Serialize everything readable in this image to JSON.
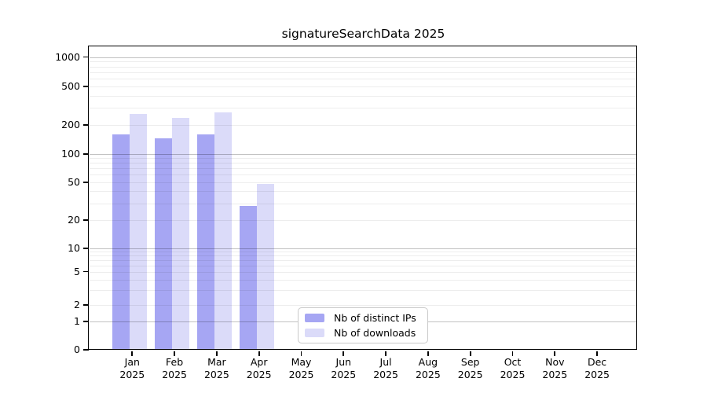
{
  "chart_data": {
    "type": "bar",
    "title": "signatureSearchData 2025",
    "months": [
      "Jan",
      "Feb",
      "Mar",
      "Apr",
      "May",
      "Jun",
      "Jul",
      "Aug",
      "Sep",
      "Oct",
      "Nov",
      "Dec"
    ],
    "year": "2025",
    "series": [
      {
        "name": "Nb of distinct IPs",
        "color": "#a6a6f3",
        "values": [
          160,
          145,
          160,
          28,
          0,
          0,
          0,
          0,
          0,
          0,
          0,
          0
        ]
      },
      {
        "name": "Nb of downloads",
        "color": "#dbdbf9",
        "values": [
          260,
          235,
          270,
          48,
          0,
          0,
          0,
          0,
          0,
          0,
          0,
          0
        ]
      }
    ],
    "yticks": [
      0,
      1,
      2,
      5,
      10,
      20,
      50,
      100,
      200,
      500,
      1000
    ],
    "xlabel": "",
    "ylabel": "",
    "yscale": "log-like (asinh, includes 0)",
    "ylim": [
      0,
      1300
    ],
    "grid": true,
    "legend_position": "lower center",
    "colors": {
      "background": "#ffffff",
      "axis": "#000000",
      "grid_major": "#c9c9c9",
      "grid_minor": "#f0f0f0"
    }
  }
}
